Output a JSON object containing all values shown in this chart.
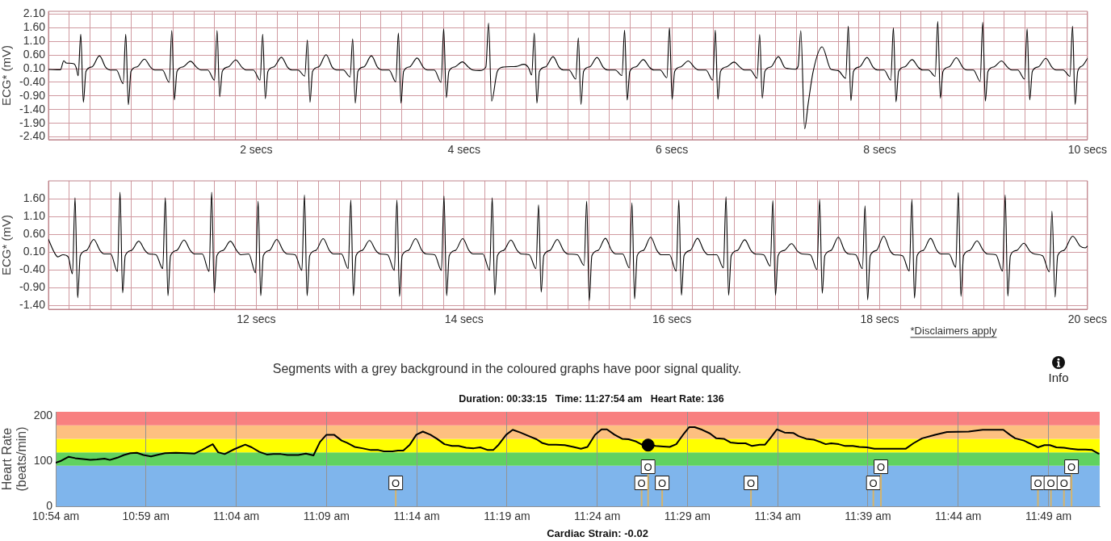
{
  "chart_data": [
    {
      "type": "line",
      "ylabel": "ECG* (mV)",
      "color": "#000000",
      "x": [
        0,
        0.115,
        0.148,
        0.17,
        0.245,
        0.27,
        0.286,
        0.311,
        0.336,
        0.361,
        0.421,
        0.491,
        0.551,
        0.591,
        0.654,
        0.719,
        0.744,
        0.769,
        0.794,
        0.854,
        0.924,
        0.984,
        1.024,
        1.097,
        1.162,
        1.187,
        1.212,
        1.237,
        1.297,
        1.367,
        1.427,
        1.467,
        1.533,
        1.598,
        1.623,
        1.648,
        1.673,
        1.733,
        1.803,
        1.863,
        1.903,
        1.972,
        2.037,
        2.062,
        2.087,
        2.112,
        2.172,
        2.242,
        2.302,
        2.342,
        2.402,
        2.467,
        2.492,
        2.517,
        2.542,
        2.602,
        2.672,
        2.732,
        2.772,
        2.838,
        2.903,
        2.928,
        2.953,
        2.978,
        3.038,
        3.108,
        3.168,
        3.208,
        3.278,
        3.343,
        3.368,
        3.393,
        3.418,
        3.478,
        3.548,
        3.608,
        3.648,
        3.714,
        3.779,
        3.804,
        3.829,
        3.854,
        3.914,
        3.984,
        4.044,
        4.084,
        4.15,
        4.21,
        4.236,
        4.265,
        4.32,
        4.38,
        4.5,
        4.575,
        4.62,
        4.651,
        4.676,
        4.701,
        4.726,
        4.786,
        4.856,
        4.916,
        4.956,
        5.01,
        5.075,
        5.1,
        5.125,
        5.15,
        5.21,
        5.28,
        5.34,
        5.38,
        5.455,
        5.52,
        5.545,
        5.57,
        5.595,
        5.655,
        5.725,
        5.785,
        5.825,
        5.887,
        5.952,
        5.977,
        6.002,
        6.027,
        6.087,
        6.157,
        6.217,
        6.257,
        6.328,
        6.393,
        6.418,
        6.443,
        6.468,
        6.528,
        6.598,
        6.658,
        6.698,
        6.755,
        6.82,
        6.845,
        6.87,
        6.895,
        6.955,
        7.025,
        7.085,
        7.125,
        7.19,
        7.215,
        7.241,
        7.278,
        7.312,
        7.36,
        7.446,
        7.53,
        7.6,
        7.673,
        7.698,
        7.723,
        7.748,
        7.808,
        7.878,
        7.938,
        7.978,
        8.042,
        8.107,
        8.132,
        8.157,
        8.182,
        8.242,
        8.312,
        8.372,
        8.412,
        8.469,
        8.534,
        8.559,
        8.584,
        8.609,
        8.669,
        8.739,
        8.799,
        8.839,
        8.902,
        8.967,
        8.992,
        9.017,
        9.042,
        9.102,
        9.172,
        9.232,
        9.272,
        9.329,
        9.394,
        9.419,
        9.444,
        9.469,
        9.529,
        9.599,
        9.659,
        9.699,
        9.766,
        9.831,
        9.856,
        9.881,
        9.906,
        9.95,
        10
      ],
      "values": [
        0.07,
        0.06,
        0.39,
        0.31,
        0.28,
        0.1,
        -0.16,
        1.36,
        -1.13,
        0,
        0.17,
        0.57,
        0.15,
        0.05,
        0.05,
        -0.45,
        1.36,
        -1.22,
        0,
        0.17,
        0.45,
        0.15,
        0.05,
        0.05,
        -0.4,
        1.5,
        -1.04,
        0,
        0.17,
        0.37,
        0.15,
        0.05,
        0.05,
        -0.32,
        1.5,
        -0.93,
        0,
        0.17,
        0.42,
        0.15,
        0.05,
        0.05,
        -0.32,
        1.36,
        -1,
        0,
        0.17,
        0.52,
        0.15,
        0.05,
        0.05,
        -0.17,
        1.15,
        -1.13,
        0,
        0.17,
        0.61,
        0.15,
        0.05,
        0.05,
        -0.2,
        1.19,
        -1.16,
        0,
        0.17,
        0.57,
        0.15,
        0.05,
        0.05,
        -0.38,
        1.41,
        -1.16,
        0,
        0.17,
        0.49,
        0.15,
        0.05,
        0.05,
        -0.4,
        1.56,
        -0.96,
        0,
        0.17,
        0.35,
        0.15,
        0.05,
        0.03,
        0.16,
        1.77,
        -1.09,
        0,
        0.16,
        0.18,
        0.26,
        0.14,
        -0.13,
        1.41,
        -1.16,
        0,
        0.17,
        0.54,
        0.15,
        0.05,
        0.05,
        -0.28,
        1.23,
        -1.21,
        0,
        0.17,
        0.51,
        0.15,
        0.05,
        0.05,
        -0.15,
        1.51,
        -1.05,
        0,
        0.17,
        0.43,
        0.15,
        0.05,
        0.05,
        -0.23,
        1.6,
        -1.02,
        0,
        0.17,
        0.38,
        0.15,
        0.05,
        0.05,
        -0.32,
        1.51,
        -1.02,
        0,
        0.17,
        0.34,
        0.15,
        0.05,
        0.05,
        -0.25,
        1.35,
        -0.98,
        0,
        0.17,
        0.54,
        0.15,
        0.1,
        0.08,
        0.19,
        1.49,
        -2.1,
        -1.18,
        0,
        0.9,
        0.08,
        0.03,
        -0.25,
        1.66,
        -1.07,
        0,
        0.17,
        0.51,
        0.15,
        0.05,
        0.05,
        -0.32,
        1.6,
        -1.12,
        0,
        0.17,
        0.43,
        0.15,
        0.05,
        0.05,
        -0.18,
        1.83,
        -0.98,
        0,
        0.17,
        0.5,
        0.15,
        0.05,
        0.05,
        -0.36,
        1.8,
        -1.09,
        0,
        0.17,
        0.38,
        0.15,
        0.05,
        0.05,
        -0.28,
        1.56,
        -1.04,
        0,
        0.17,
        0.48,
        0.15,
        0.05,
        0.05,
        -0.18,
        1.66,
        -1.21,
        0,
        0.2,
        0.48
      ],
      "xlim": [
        0,
        10
      ],
      "ylim": [
        -2.5,
        2.2
      ],
      "xticks": [
        {
          "value": 0.2,
          "label": null
        },
        {
          "value": 0.4,
          "label": null
        },
        {
          "value": 0.6,
          "label": null
        },
        {
          "value": 0.8,
          "label": null
        },
        {
          "value": 1,
          "label": null
        },
        {
          "value": 1.2,
          "label": null
        },
        {
          "value": 1.4,
          "label": null
        },
        {
          "value": 1.6,
          "label": null
        },
        {
          "value": 1.8,
          "label": null
        },
        {
          "value": 2,
          "label": "2 secs"
        },
        {
          "value": 2.2,
          "label": null
        },
        {
          "value": 2.4,
          "label": null
        },
        {
          "value": 2.6,
          "label": null
        },
        {
          "value": 2.8,
          "label": null
        },
        {
          "value": 3,
          "label": null
        },
        {
          "value": 3.2,
          "label": null
        },
        {
          "value": 3.4,
          "label": null
        },
        {
          "value": 3.6,
          "label": null
        },
        {
          "value": 3.8,
          "label": null
        },
        {
          "value": 4,
          "label": "4 secs"
        },
        {
          "value": 4.2,
          "label": null
        },
        {
          "value": 4.4,
          "label": null
        },
        {
          "value": 4.6,
          "label": null
        },
        {
          "value": 4.8,
          "label": null
        },
        {
          "value": 5,
          "label": null
        },
        {
          "value": 5.2,
          "label": null
        },
        {
          "value": 5.4,
          "label": null
        },
        {
          "value": 5.6,
          "label": null
        },
        {
          "value": 5.8,
          "label": null
        },
        {
          "value": 6,
          "label": "6 secs"
        },
        {
          "value": 6.2,
          "label": null
        },
        {
          "value": 6.4,
          "label": null
        },
        {
          "value": 6.6,
          "label": null
        },
        {
          "value": 6.8,
          "label": null
        },
        {
          "value": 7,
          "label": null
        },
        {
          "value": 7.2,
          "label": null
        },
        {
          "value": 7.4,
          "label": null
        },
        {
          "value": 7.6,
          "label": null
        },
        {
          "value": 7.8,
          "label": null
        },
        {
          "value": 8,
          "label": "8 secs"
        },
        {
          "value": 8.2,
          "label": null
        },
        {
          "value": 8.4,
          "label": null
        },
        {
          "value": 8.6,
          "label": null
        },
        {
          "value": 8.8,
          "label": null
        },
        {
          "value": 9,
          "label": null
        },
        {
          "value": 9.2,
          "label": null
        },
        {
          "value": 9.4,
          "label": null
        },
        {
          "value": 9.6,
          "label": null
        },
        {
          "value": 9.8,
          "label": null
        },
        {
          "value": 10,
          "label": "10 secs"
        }
      ],
      "yticks": [
        {
          "value": -2.4,
          "label": "-2.40"
        },
        {
          "value": -1.9,
          "label": "-1.90"
        },
        {
          "value": -1.4,
          "label": "-1.40"
        },
        {
          "value": -0.9,
          "label": "-0.90"
        },
        {
          "value": -0.4,
          "label": "-0.40"
        },
        {
          "value": 0.1,
          "label": "0.10"
        },
        {
          "value": 0.6,
          "label": "0.60"
        },
        {
          "value": 1.1,
          "label": "1.10"
        },
        {
          "value": 1.6,
          "label": "1.60"
        },
        {
          "value": 2.1,
          "label": "2.10"
        }
      ],
      "grid": true
    },
    {
      "type": "line",
      "ylabel": "ECG* (mV)",
      "color": "#000000",
      "x": [
        10,
        10.055,
        10.09,
        10.14,
        10.19,
        10.231,
        10.256,
        10.281,
        10.306,
        10.366,
        10.436,
        10.496,
        10.536,
        10.599,
        10.664,
        10.689,
        10.714,
        10.739,
        10.799,
        10.869,
        10.929,
        10.969,
        11.035,
        11.1,
        11.125,
        11.15,
        11.175,
        11.235,
        11.305,
        11.365,
        11.405,
        11.481,
        11.546,
        11.571,
        11.596,
        11.621,
        11.681,
        11.751,
        11.811,
        11.851,
        11.928,
        11.993,
        12.018,
        12.043,
        12.068,
        12.128,
        12.198,
        12.258,
        12.298,
        12.374,
        12.439,
        12.464,
        12.489,
        12.514,
        12.574,
        12.644,
        12.704,
        12.744,
        12.82,
        12.885,
        12.91,
        12.935,
        12.96,
        13.02,
        13.09,
        13.15,
        13.19,
        13.264,
        13.329,
        13.354,
        13.379,
        13.404,
        13.464,
        13.534,
        13.594,
        13.634,
        13.717,
        13.782,
        13.807,
        13.832,
        13.857,
        13.917,
        13.987,
        14.047,
        14.087,
        14.181,
        14.246,
        14.271,
        14.296,
        14.321,
        14.381,
        14.451,
        14.511,
        14.551,
        14.627,
        14.692,
        14.717,
        14.742,
        14.767,
        14.827,
        14.897,
        14.957,
        14.997,
        15.09,
        15.155,
        15.18,
        15.205,
        15.23,
        15.29,
        15.36,
        15.42,
        15.46,
        15.526,
        15.591,
        15.616,
        15.641,
        15.666,
        15.726,
        15.796,
        15.856,
        15.896,
        15.977,
        16.042,
        16.067,
        16.092,
        16.117,
        16.177,
        16.247,
        16.307,
        16.347,
        16.431,
        16.496,
        16.521,
        16.546,
        16.571,
        16.631,
        16.701,
        16.761,
        16.801,
        16.882,
        16.947,
        16.972,
        16.997,
        17.022,
        17.082,
        17.152,
        17.212,
        17.252,
        17.332,
        17.397,
        17.422,
        17.447,
        17.472,
        17.532,
        17.602,
        17.662,
        17.702,
        17.769,
        17.834,
        17.859,
        17.884,
        17.909,
        17.969,
        18.039,
        18.099,
        18.139,
        18.22,
        18.285,
        18.31,
        18.335,
        18.36,
        18.42,
        18.49,
        18.55,
        18.59,
        18.667,
        18.732,
        18.757,
        18.782,
        18.807,
        18.867,
        18.937,
        18.997,
        19.037,
        19.118,
        19.183,
        19.208,
        19.233,
        19.258,
        19.318,
        19.388,
        19.448,
        19.488,
        19.568,
        19.633,
        19.658,
        19.688,
        19.713,
        19.773,
        19.858,
        19.93,
        19.98,
        20
      ],
      "values": [
        0.46,
        0.1,
        -0.03,
        0.03,
        -0.03,
        -0.51,
        1.63,
        -1.18,
        0,
        0.15,
        0.46,
        0.15,
        0.05,
        0.05,
        -0.44,
        1.78,
        -1.04,
        0,
        0.15,
        0.41,
        0.15,
        0.05,
        0.03,
        -0.36,
        1.63,
        -1.12,
        0,
        0.15,
        0.44,
        0.15,
        0.05,
        0.05,
        -0.44,
        1.78,
        -1.04,
        0,
        0.15,
        0.41,
        0.15,
        0.03,
        0.05,
        -0.48,
        1.53,
        -1.12,
        0,
        0.15,
        0.46,
        0.15,
        0.05,
        0.03,
        -0.41,
        1.71,
        -1.12,
        0,
        0.15,
        0.48,
        0.15,
        0.05,
        0.05,
        -0.36,
        1.56,
        -1.12,
        0,
        0.15,
        0.43,
        0.15,
        0.05,
        0.03,
        -0.41,
        1.56,
        -1.14,
        0,
        0.15,
        0.48,
        0.15,
        0.05,
        0.03,
        -0.41,
        1.68,
        -1.12,
        0,
        0.15,
        0.48,
        0.15,
        0.05,
        0.05,
        -0.41,
        1.63,
        -1.1,
        0,
        0.15,
        0.44,
        0.15,
        0.05,
        0.03,
        -0.36,
        1.43,
        -1.02,
        0,
        0.15,
        0.46,
        0.15,
        0.05,
        0.03,
        -0.27,
        1.53,
        -1.26,
        0,
        0.15,
        0.49,
        0.15,
        0.05,
        0.05,
        -0.34,
        1.48,
        -1.21,
        0,
        0.15,
        0.52,
        0.15,
        0.03,
        0.03,
        -0.43,
        1.56,
        -1.11,
        0,
        0.15,
        0.49,
        0.15,
        0.03,
        0.03,
        -0.34,
        1.66,
        -1.11,
        0,
        0.15,
        0.45,
        0.15,
        0.05,
        0.03,
        -0.29,
        1.55,
        -1.11,
        0,
        0.15,
        0.34,
        0.12,
        0.05,
        0.03,
        -0.39,
        1.58,
        -1.05,
        0,
        0.15,
        0.52,
        0.15,
        0.05,
        0.03,
        -0.36,
        1.4,
        -1.24,
        0,
        0.15,
        0.55,
        0.15,
        0.03,
        0,
        -0.43,
        1.58,
        -1.19,
        0,
        0.15,
        0.49,
        0.15,
        0.05,
        0.05,
        -0.32,
        1.77,
        -1.14,
        0,
        0.15,
        0.42,
        0.15,
        0.05,
        0.03,
        -0.43,
        1.71,
        -1.13,
        0,
        0.15,
        0.35,
        0.12,
        0.05,
        0,
        -0.45,
        1.25,
        -1.16,
        0,
        0.15,
        0.55,
        0.27,
        0.22,
        0.27
      ],
      "xlim": [
        10,
        20
      ],
      "ylim": [
        -1.5,
        2.1
      ],
      "xticks": [
        {
          "value": 10.2,
          "label": null
        },
        {
          "value": 10.4,
          "label": null
        },
        {
          "value": 10.6,
          "label": null
        },
        {
          "value": 10.8,
          "label": null
        },
        {
          "value": 11,
          "label": null
        },
        {
          "value": 11.2,
          "label": null
        },
        {
          "value": 11.4,
          "label": null
        },
        {
          "value": 11.6,
          "label": null
        },
        {
          "value": 11.8,
          "label": null
        },
        {
          "value": 12,
          "label": "12 secs"
        },
        {
          "value": 12.2,
          "label": null
        },
        {
          "value": 12.4,
          "label": null
        },
        {
          "value": 12.6,
          "label": null
        },
        {
          "value": 12.8,
          "label": null
        },
        {
          "value": 13,
          "label": null
        },
        {
          "value": 13.2,
          "label": null
        },
        {
          "value": 13.4,
          "label": null
        },
        {
          "value": 13.6,
          "label": null
        },
        {
          "value": 13.8,
          "label": null
        },
        {
          "value": 14,
          "label": "14 secs"
        },
        {
          "value": 14.2,
          "label": null
        },
        {
          "value": 14.4,
          "label": null
        },
        {
          "value": 14.6,
          "label": null
        },
        {
          "value": 14.8,
          "label": null
        },
        {
          "value": 15,
          "label": null
        },
        {
          "value": 15.2,
          "label": null
        },
        {
          "value": 15.4,
          "label": null
        },
        {
          "value": 15.6,
          "label": null
        },
        {
          "value": 15.8,
          "label": null
        },
        {
          "value": 16,
          "label": "16 secs"
        },
        {
          "value": 16.2,
          "label": null
        },
        {
          "value": 16.4,
          "label": null
        },
        {
          "value": 16.6,
          "label": null
        },
        {
          "value": 16.8,
          "label": null
        },
        {
          "value": 17,
          "label": null
        },
        {
          "value": 17.2,
          "label": null
        },
        {
          "value": 17.4,
          "label": null
        },
        {
          "value": 17.6,
          "label": null
        },
        {
          "value": 17.8,
          "label": null
        },
        {
          "value": 18,
          "label": "18 secs"
        },
        {
          "value": 18.2,
          "label": null
        },
        {
          "value": 18.4,
          "label": null
        },
        {
          "value": 18.6,
          "label": null
        },
        {
          "value": 18.8,
          "label": null
        },
        {
          "value": 19,
          "label": null
        },
        {
          "value": 19.2,
          "label": null
        },
        {
          "value": 19.4,
          "label": null
        },
        {
          "value": 19.6,
          "label": null
        },
        {
          "value": 19.8,
          "label": null
        },
        {
          "value": 20,
          "label": "20 secs"
        }
      ],
      "yticks": [
        {
          "value": -1.4,
          "label": "-1.40"
        },
        {
          "value": -0.9,
          "label": "-0.90"
        },
        {
          "value": -0.4,
          "label": "-0.40"
        },
        {
          "value": 0.1,
          "label": "0.10"
        },
        {
          "value": 0.6,
          "label": "0.60"
        },
        {
          "value": 1.1,
          "label": "1.10"
        },
        {
          "value": 1.6,
          "label": "1.60"
        }
      ],
      "grid": true,
      "annotations": [
        "*Disclaimers apply"
      ]
    },
    {
      "type": "line",
      "title": "Duration: 00:33:15   Time: 11:27:54 am   Heart Rate: 136",
      "ylabel": "Heart Rate (beats/min)",
      "series": [
        {
          "color": "#000000",
          "x": [
            10.9,
            10.905,
            10.912,
            10.918,
            10.925,
            10.932,
            10.938,
            10.945,
            10.95,
            10.957,
            10.963,
            10.969,
            10.975,
            10.981,
            10.988,
            10.995,
            11.001,
            11.011,
            11.021,
            11.028,
            11.035,
            11.045,
            11.05,
            11.056,
            11.065,
            11.075,
            11.081,
            11.088,
            11.095,
            11.101,
            11.108,
            11.114,
            11.124,
            11.131,
            11.138,
            11.144,
            11.15,
            11.157,
            11.164,
            11.169,
            11.176,
            11.183,
            11.191,
            11.198,
            11.203,
            11.211,
            11.216,
            11.221,
            11.227,
            11.233,
            11.239,
            11.246,
            11.252,
            11.259,
            11.266,
            11.272,
            11.279,
            11.286,
            11.292,
            11.299,
            11.304,
            11.309,
            11.316,
            11.322,
            11.329,
            11.337,
            11.344,
            11.349,
            11.355,
            11.362,
            11.37,
            11.378,
            11.385,
            11.391,
            11.398,
            11.404,
            11.409,
            11.416,
            11.423,
            11.429,
            11.436,
            11.442,
            11.447,
            11.454,
            11.461,
            11.467,
            11.473,
            11.479,
            11.485,
            11.49,
            11.497,
            11.504,
            11.51,
            11.517,
            11.523,
            11.53,
            11.537,
            11.543,
            11.55,
            11.555,
            11.56,
            11.566,
            11.573,
            11.581,
            11.586,
            11.593,
            11.6,
            11.606,
            11.611,
            11.616,
            11.623,
            11.629,
            11.636,
            11.642,
            11.649,
            11.656,
            11.669,
            11.685,
            11.692,
            11.7,
            11.712,
            11.723,
            11.743,
            11.756,
            11.775,
            11.781,
            11.786,
            11.794,
            11.801,
            11.807,
            11.813,
            11.818,
            11.824,
            11.831,
            11.837,
            11.844,
            11.851,
            11.857,
            11.863
          ],
          "values": [
            97,
            101,
            110,
            107,
            105,
            103,
            104,
            106,
            103,
            108,
            114,
            118,
            119,
            114,
            111,
            115,
            118,
            119,
            118,
            117,
            125,
            138,
            120,
            116,
            127,
            137,
            131,
            121,
            115,
            116,
            116,
            114,
            114,
            117,
            113,
            143,
            159,
            159,
            146,
            141,
            132,
            129,
            125,
            125,
            122,
            122,
            124,
            124,
            137,
            159,
            166,
            159,
            150,
            138,
            134,
            134,
            130,
            129,
            131,
            125,
            125,
            137,
            159,
            170,
            164,
            156,
            149,
            141,
            137,
            137,
            136,
            132,
            128,
            132,
            159,
            171,
            171,
            159,
            150,
            149,
            144,
            136,
            136,
            134,
            133,
            132,
            138,
            158,
            176,
            176,
            170,
            162,
            151,
            150,
            142,
            140,
            140,
            134,
            137,
            137,
            152,
            171,
            164,
            163,
            156,
            150,
            148,
            143,
            138,
            140,
            138,
            134,
            134,
            132,
            131,
            128,
            128,
            128,
            140,
            151,
            159,
            165,
            166,
            170,
            170,
            159,
            151,
            146,
            138,
            131,
            136,
            136,
            131,
            130,
            128,
            126,
            126,
            125,
            117
          ]
        },
        {
          "type": "scatter",
          "color": "#000000",
          "marker": "circle",
          "x": [
            11.447
          ],
          "values": [
            136
          ]
        }
      ],
      "xlim": [
        10.9,
        11.864
      ],
      "ylim": [
        0,
        210
      ],
      "xticks": [
        {
          "value": 10.9,
          "label": "10:54 am"
        },
        {
          "value": 10.9833,
          "label": "10:59 am"
        },
        {
          "value": 11.0667,
          "label": "11:04 am"
        },
        {
          "value": 11.15,
          "label": "11:09 am"
        },
        {
          "value": 11.2333,
          "label": "11:14 am"
        },
        {
          "value": 11.3167,
          "label": "11:19 am"
        },
        {
          "value": 11.4,
          "label": "11:24 am"
        },
        {
          "value": 11.4833,
          "label": "11:29 am"
        },
        {
          "value": 11.5667,
          "label": "11:34 am"
        },
        {
          "value": 11.65,
          "label": "11:39 am"
        },
        {
          "value": 11.7333,
          "label": "11:44 am"
        },
        {
          "value": 11.8167,
          "label": "11:49 am"
        }
      ],
      "yticks": [
        0,
        100,
        200
      ],
      "grid": "x",
      "bands": [
        {
          "axis": "y",
          "from": 0,
          "to": 90,
          "color": "#7fb5ec"
        },
        {
          "axis": "y",
          "from": 90,
          "to": 120,
          "color": "#60d260"
        },
        {
          "axis": "y",
          "from": 120,
          "to": 150,
          "color": "#ffff00"
        },
        {
          "axis": "y",
          "from": 150,
          "to": 180,
          "color": "#fdc080"
        },
        {
          "axis": "y",
          "from": 180,
          "to": 210,
          "color": "#f88080"
        }
      ],
      "annotations": [
        "Segments with a grey background in the coloured graphs have poor signal quality.",
        "Info",
        "Cardiac Strain: -0.02",
        {
          "text": "O",
          "x": 11.214,
          "y": 0
        },
        {
          "text": "O",
          "x": 11.441,
          "y": 0
        },
        {
          "text": "O",
          "x": 11.447,
          "y": 0
        },
        {
          "text": "O",
          "x": 11.46,
          "y": 0
        },
        {
          "text": "O",
          "x": 11.542,
          "y": 0
        },
        {
          "text": "O",
          "x": 11.655,
          "y": 0
        },
        {
          "text": "O",
          "x": 11.662,
          "y": 0
        },
        {
          "text": "O",
          "x": 11.807,
          "y": 0
        },
        {
          "text": "O",
          "x": 11.819,
          "y": 0
        },
        {
          "text": "O",
          "x": 11.831,
          "y": 0
        },
        {
          "text": "O",
          "x": 11.838,
          "y": 0
        }
      ]
    }
  ]
}
